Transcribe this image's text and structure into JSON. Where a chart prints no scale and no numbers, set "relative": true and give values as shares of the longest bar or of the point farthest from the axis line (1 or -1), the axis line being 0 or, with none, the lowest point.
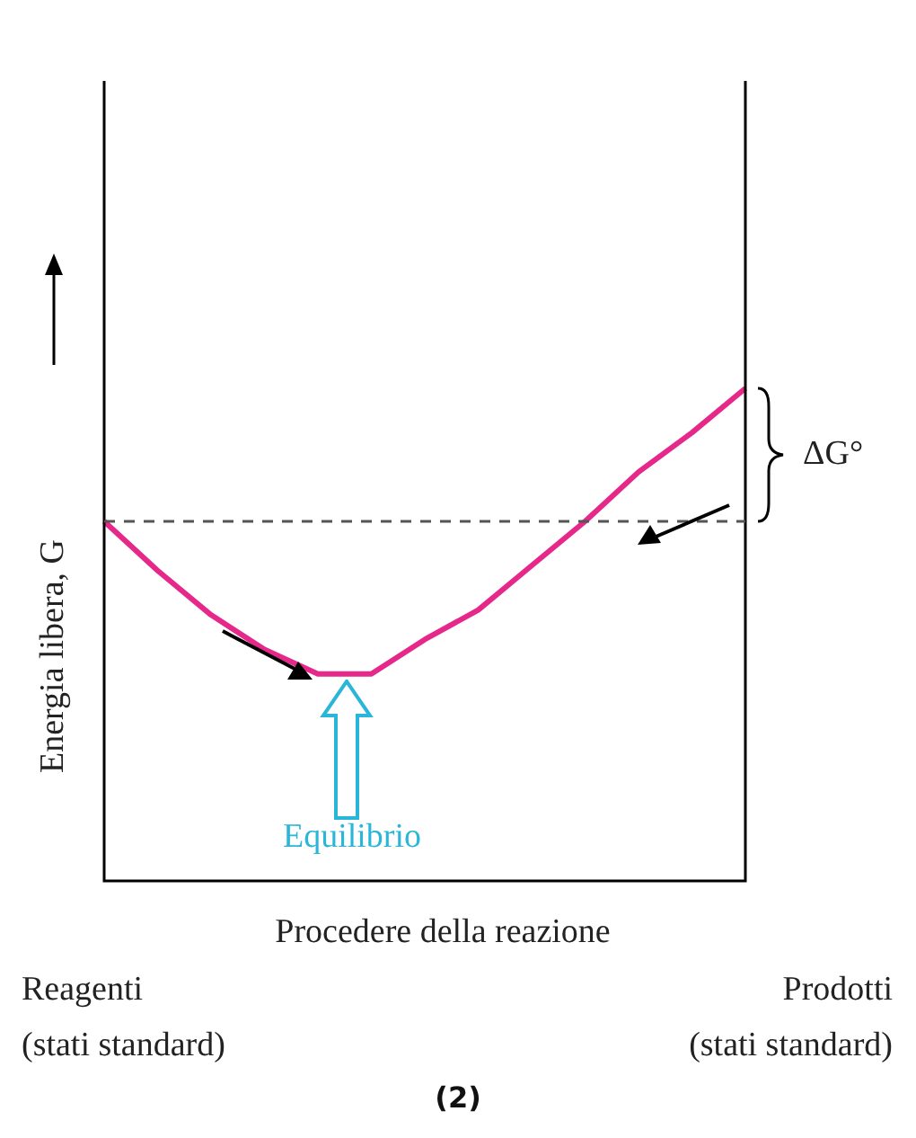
{
  "chart_data": {
    "type": "line",
    "relative": true,
    "xlabel": "Procedere della reazione",
    "ylabel": "Energia libera, G",
    "categories": [
      null,
      null,
      null,
      null,
      null,
      null,
      null,
      null,
      null,
      null,
      null,
      null,
      null
    ],
    "series": [
      {
        "color": "#e6288a",
        "values": [
          0.73,
          0.63,
          0.54,
          0.47,
          0.42,
          0.42,
          0.49,
          0.55,
          0.64,
          0.73,
          0.83,
          0.91,
          1
        ]
      }
    ],
    "ref_lines": [
      {
        "axis": "y",
        "value": 0.73,
        "color": "#555555",
        "line_style": "dashed"
      }
    ],
    "annotations": [
      "Reagenti\n(stati standard)",
      "Prodotti\n(stati standard)",
      "Equilibrio",
      "ΔG°",
      "(2)"
    ],
    "legend": false,
    "marker": "none",
    "line_style": "solid"
  }
}
